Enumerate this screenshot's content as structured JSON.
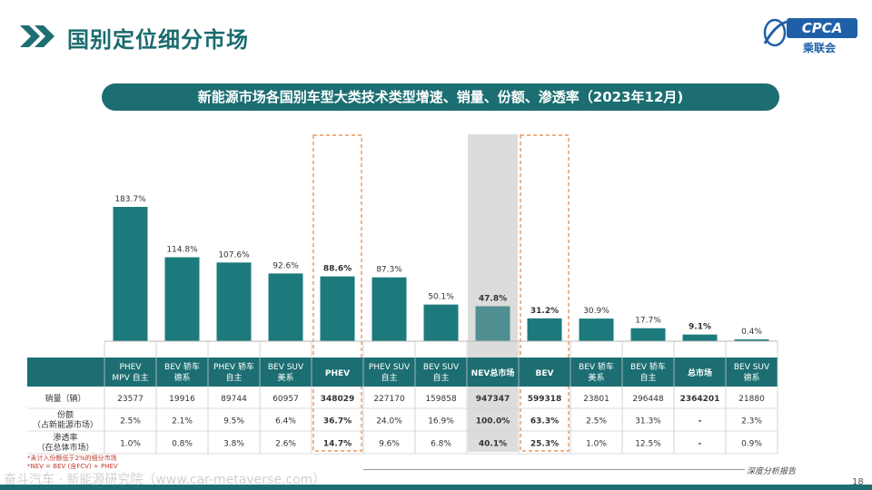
{
  "header": {
    "title": "国别定位细分市场"
  },
  "logo": {
    "brand": "CPCA",
    "sub": "乘联会"
  },
  "banner": {
    "text": "新能源市场各国别车型大类技术类型增速、销量、份额、渗透率（2023年12月)"
  },
  "table": {
    "row_labels": [
      "销量（辆）",
      "份额\n（占新能源市场）",
      "渗透率\n（在总体市场）"
    ],
    "columns": [
      {
        "label": "PHEV\nMPV 自主",
        "sales": "23577",
        "share": "2.5%",
        "pen": "1.0%",
        "bold": false
      },
      {
        "label": "BEV 轿车\n德系",
        "sales": "19916",
        "share": "2.1%",
        "pen": "0.8%",
        "bold": false
      },
      {
        "label": "PHEV 轿车\n自主",
        "sales": "89744",
        "share": "9.5%",
        "pen": "3.8%",
        "bold": false
      },
      {
        "label": "BEV SUV\n美系",
        "sales": "60957",
        "share": "6.4%",
        "pen": "2.6%",
        "bold": false
      },
      {
        "label": "PHEV",
        "sales": "348029",
        "share": "36.7%",
        "pen": "14.7%",
        "bold": true
      },
      {
        "label": "PHEV SUV\n自主",
        "sales": "227170",
        "share": "24.0%",
        "pen": "9.6%",
        "bold": false
      },
      {
        "label": "BEV SUV\n自主",
        "sales": "159858",
        "share": "16.9%",
        "pen": "6.8%",
        "bold": false
      },
      {
        "label": "NEV总市场",
        "sales": "947347",
        "share": "100.0%",
        "pen": "40.1%",
        "bold": true
      },
      {
        "label": "BEV",
        "sales": "599318",
        "share": "63.3%",
        "pen": "25.3%",
        "bold": true
      },
      {
        "label": "BEV 轿车\n美系",
        "sales": "23801",
        "share": "2.5%",
        "pen": "1.0%",
        "bold": false
      },
      {
        "label": "BEV 轿车\n自主",
        "sales": "296448",
        "share": "31.3%",
        "pen": "12.5%",
        "bold": false
      },
      {
        "label": "总市场",
        "sales": "2364201",
        "share": "-",
        "pen": "-",
        "bold": true
      },
      {
        "label": "BEV SUV\n德系",
        "sales": "21880",
        "share": "2.3%",
        "pen": "0.9%",
        "bold": false
      }
    ]
  },
  "chart_data": {
    "type": "bar",
    "categories": [
      "PHEV MPV 自主",
      "BEV 轿车 德系",
      "PHEV 轿车 自主",
      "BEV SUV 美系",
      "PHEV",
      "PHEV SUV 自主",
      "BEV SUV 自主",
      "NEV总市场",
      "BEV",
      "BEV 轿车 美系",
      "BEV 轿车 自主",
      "总市场",
      "BEV SUV 德系"
    ],
    "values": [
      183.7,
      114.8,
      107.6,
      92.6,
      88.6,
      87.3,
      50.1,
      47.8,
      31.2,
      30.9,
      17.7,
      9.1,
      0.4
    ],
    "labels": [
      "183.7%",
      "114.8%",
      "107.6%",
      "92.6%",
      "88.6%",
      "87.3%",
      "50.1%",
      "47.8%",
      "31.2%",
      "30.9%",
      "17.7%",
      "9.1%",
      "0.4%"
    ],
    "bold": [
      false,
      false,
      false,
      false,
      true,
      false,
      false,
      true,
      true,
      false,
      false,
      true,
      false
    ],
    "highlight_dashed": [
      "PHEV",
      "BEV"
    ],
    "highlight_shaded": [
      "NEV总市场"
    ],
    "colors": {
      "bar": "#1c7a7c",
      "shaded_bar": "#4f8f91",
      "dash": "#e8833a",
      "shade": "#dcdcdc",
      "header": "#1c6e72"
    },
    "ylim": [
      0,
      200
    ],
    "grid": false
  },
  "footnotes": [
    "*未计入份额低于2%的细分市场",
    "*NEV = BEV (含FCV) + PHEV"
  ],
  "footer": {
    "report": "深度分析报告",
    "page": "18",
    "watermark": "奋斗汽车 · 新能源研究院（www.car-metaverse.com）"
  }
}
